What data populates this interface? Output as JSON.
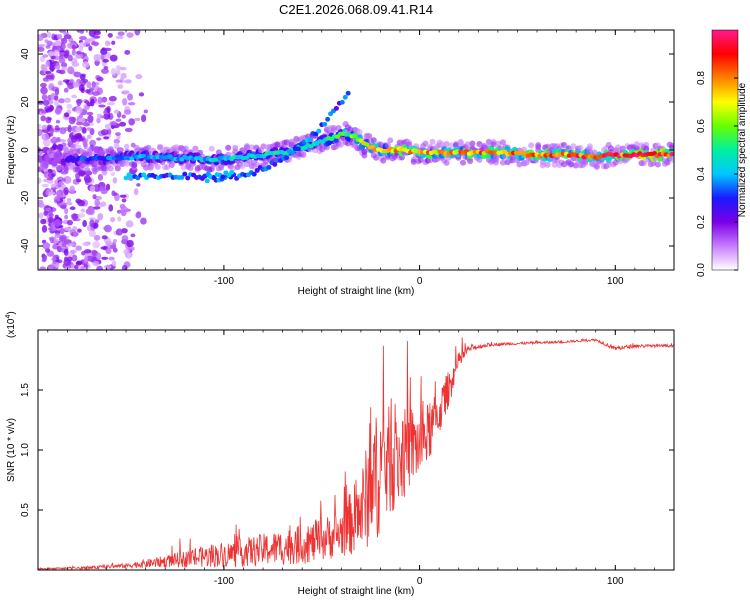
{
  "chart_data": [
    {
      "type": "heatmap",
      "title": "C2E1.2026.068.09.41.R14",
      "xlabel": "Height of straight line (km)",
      "ylabel": "Frequency (Hz)",
      "xlim": [
        -195,
        130
      ],
      "ylim": [
        -50,
        50
      ],
      "xticks": [
        -100,
        0,
        100
      ],
      "xtick_labels": [
        "-100",
        "0",
        "100"
      ],
      "yticks": [
        -40,
        -20,
        0,
        20,
        40
      ],
      "ytick_labels": [
        "-40",
        "-20",
        "0",
        "20",
        "40"
      ],
      "colorbar": {
        "label": "Normalized spectral amplitude",
        "range": [
          0,
          1
        ],
        "ticks": [
          0.0,
          0.2,
          0.4,
          0.6,
          0.8
        ],
        "tick_labels": [
          "0.0",
          "0.2",
          "0.4",
          "0.6",
          "0.8"
        ],
        "colormap": [
          "#ffffff",
          "#c77dff",
          "#7a00e6",
          "#1a1aff",
          "#00c8ff",
          "#00f0a0",
          "#66ff00",
          "#ffff00",
          "#ff8000",
          "#ff0000",
          "#ff1a8c"
        ]
      },
      "ridge": {
        "x": [
          -185,
          -170,
          -150,
          -130,
          -110,
          -90,
          -70,
          -55,
          -45,
          -38,
          -32,
          -28,
          -20,
          -10,
          0,
          10,
          20,
          40,
          60,
          80,
          90,
          100,
          115,
          130
        ],
        "freq": [
          -4,
          -4,
          -3,
          -3,
          -4,
          -3,
          -1,
          2,
          5,
          7,
          5,
          2,
          0,
          0,
          -1,
          -1,
          -1,
          -1,
          -2,
          -2,
          -3,
          -2,
          -2,
          -2
        ],
        "amplitude": [
          0.3,
          0.35,
          0.4,
          0.45,
          0.45,
          0.5,
          0.5,
          0.55,
          0.55,
          0.6,
          0.7,
          0.75,
          0.8,
          0.85,
          0.8,
          0.85,
          0.85,
          0.85,
          0.9,
          0.9,
          0.95,
          0.95,
          0.98,
          1.0
        ]
      },
      "secondary_branch": {
        "x": [
          -110,
          -90,
          -75,
          -60,
          -50,
          -42,
          -36
        ],
        "freq": [
          -12,
          -11,
          -6,
          2,
          10,
          18,
          24
        ]
      },
      "lower_branch": {
        "x": [
          -150,
          -130,
          -110,
          -95
        ],
        "freq": [
          -11,
          -11,
          -11,
          -10
        ]
      }
    },
    {
      "type": "line",
      "xlabel": "Height of straight line (km)",
      "ylabel": "SNR (10 * v/v)",
      "y_multiplier_label": "(x10",
      "y_multiplier_exp": "4",
      "xlim": [
        -195,
        130
      ],
      "ylim": [
        0,
        2.0
      ],
      "xticks": [
        -100,
        0,
        100
      ],
      "xtick_labels": [
        "-100",
        "0",
        "100"
      ],
      "yticks": [
        0.5,
        1.0,
        1.5
      ],
      "ytick_labels": [
        "0.5",
        "1.0",
        "1.5"
      ],
      "line_color": "#ee3333",
      "series": [
        {
          "name": "SNR",
          "x": [
            -195,
            -170,
            -150,
            -130,
            -110,
            -90,
            -70,
            -55,
            -40,
            -30,
            -25,
            -20,
            -15,
            -10,
            -5,
            0,
            5,
            10,
            15,
            20,
            25,
            35,
            50,
            70,
            90,
            100,
            110,
            130
          ],
          "y": [
            0.01,
            0.02,
            0.04,
            0.08,
            0.13,
            0.17,
            0.22,
            0.26,
            0.35,
            0.55,
            0.8,
            0.95,
            1.0,
            1.0,
            1.1,
            1.1,
            1.2,
            1.35,
            1.55,
            1.75,
            1.85,
            1.88,
            1.89,
            1.9,
            1.92,
            1.85,
            1.87,
            1.87
          ],
          "noise": [
            0.005,
            0.01,
            0.02,
            0.05,
            0.09,
            0.12,
            0.15,
            0.17,
            0.2,
            0.35,
            0.5,
            0.55,
            0.45,
            0.4,
            0.35,
            0.3,
            0.25,
            0.2,
            0.15,
            0.08,
            0.03,
            0.015,
            0.01,
            0.01,
            0.01,
            0.02,
            0.015,
            0.01
          ]
        }
      ]
    }
  ]
}
